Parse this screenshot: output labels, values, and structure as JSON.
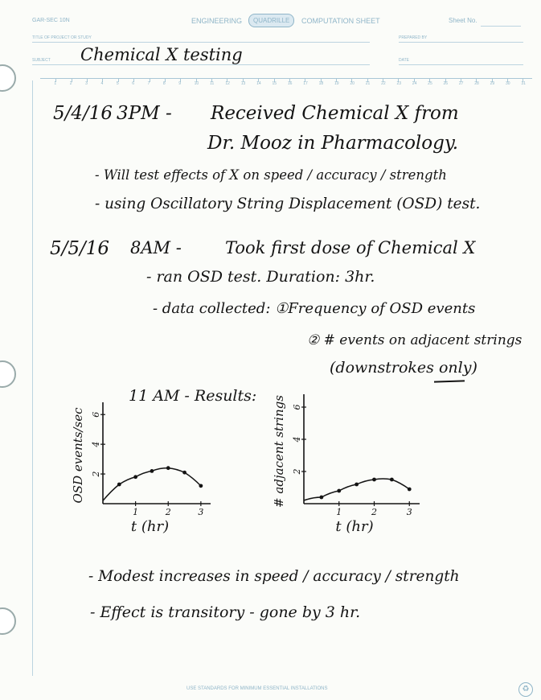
{
  "header": {
    "left_code": "GAR-SEC 10N",
    "title_left": "ENGINEERING",
    "logo": "QUADRILLE",
    "title_right": "COMPUTATION SHEET",
    "sheet_no_label": "Sheet No.",
    "project_label": "TITLE OF PROJECT OR STUDY",
    "subject_label": "SUBJECT",
    "subject_value": "Chemical X testing",
    "prepared_label": "PREPARED BY",
    "date_label": "DATE",
    "ruler_numbers": [
      "1",
      "2",
      "3",
      "4",
      "5",
      "6",
      "7",
      "8",
      "9",
      "10",
      "11",
      "12",
      "13",
      "14",
      "15",
      "16",
      "17",
      "18",
      "19",
      "20",
      "21",
      "22",
      "23",
      "24",
      "25",
      "26",
      "27",
      "28",
      "29",
      "30",
      "31"
    ]
  },
  "notes": {
    "entry1_date": "5/4/16",
    "entry1_time": "3PM -",
    "entry1_line1": "Received Chemical X from",
    "entry1_line2": "Dr. Mooz in Pharmacology.",
    "entry1_bullet1": "- Will test effects of X on speed / accuracy / strength",
    "entry1_bullet2": "- using Oscillatory String Displacement (OSD) test.",
    "entry2_date": "5/5/16",
    "entry2_time": "8AM -",
    "entry2_line1": "Took first dose of Chemical X",
    "entry2_bullet1": "- ran OSD test. Duration: 3hr.",
    "entry2_bullet2": "- data collected: ①Frequency of OSD events",
    "entry2_item2": "② # events on adjacent strings",
    "entry2_item2b": "(downstrokes only)",
    "results_label": "11 AM - Results:",
    "conclusion1": "- Modest increases in speed / accuracy / strength",
    "conclusion2": "- Effect is transitory - gone by 3 hr."
  },
  "footer": {
    "text": "USE STANDARDS FOR MINIMUM ESSENTIAL INSTALLATIONS"
  },
  "chart_data": [
    {
      "type": "line",
      "title": "",
      "xlabel": "t (hr)",
      "ylabel": "OSD events/sec",
      "x_ticks": [
        "1",
        "2",
        "3"
      ],
      "y_ticks": [
        "2",
        "4",
        "6"
      ],
      "xlim": [
        0,
        3.2
      ],
      "ylim": [
        0,
        6.5
      ],
      "x": [
        0.5,
        1.0,
        1.5,
        2.0,
        2.5,
        3.0
      ],
      "y": [
        1.3,
        1.8,
        2.2,
        2.4,
        2.1,
        1.2
      ],
      "grid": false,
      "color": "#141414"
    },
    {
      "type": "line",
      "title": "",
      "xlabel": "t (hr)",
      "ylabel": "# adjacent strings",
      "x_ticks": [
        "1",
        "2",
        "3"
      ],
      "y_ticks": [
        "2",
        "4",
        "6"
      ],
      "xlim": [
        0,
        3.2
      ],
      "ylim": [
        0,
        6.5
      ],
      "x": [
        0.5,
        1.0,
        1.5,
        2.0,
        2.5,
        3.0
      ],
      "y": [
        0.4,
        0.8,
        1.2,
        1.5,
        1.5,
        0.9
      ],
      "grid": false,
      "color": "#141414"
    }
  ]
}
